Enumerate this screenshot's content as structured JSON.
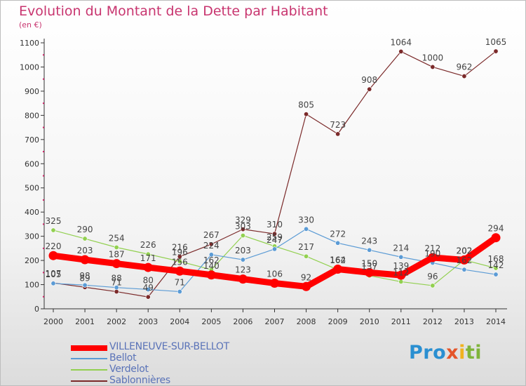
{
  "header": {
    "title": "Evolution du Montant de la Dette par Habitant",
    "subtitle": "(en €)"
  },
  "logo": {
    "part1": "Pro",
    "part2": "x",
    "part3": "i",
    "part4": "ti"
  },
  "chart_data": {
    "type": "line",
    "title": "Evolution du Montant de la Dette par Habitant",
    "ylabel": "(en €)",
    "xlabel": "",
    "x": [
      "2000",
      "2001",
      "2002",
      "2003",
      "2004",
      "2005",
      "2006",
      "2007",
      "2008",
      "2009",
      "2010",
      "2011",
      "2012",
      "2013",
      "2014"
    ],
    "ylim": [
      0,
      1100
    ],
    "yticks": [
      0,
      100,
      200,
      300,
      400,
      500,
      600,
      700,
      800,
      900,
      1000,
      1100
    ],
    "grid": false,
    "legend_position": "bottom-left",
    "series": [
      {
        "name": "VILLENEUVE-SUR-BELLOT",
        "color": "#ff0000",
        "values": [
          220,
          203,
          187,
          171,
          156,
          140,
          123,
          106,
          92,
          164,
          150,
          139,
          212,
          202,
          294
        ],
        "labels": [
          "220",
          "203",
          "187",
          "171",
          "156",
          "140",
          "123",
          "106",
          "92",
          "164",
          "150",
          "139",
          "212",
          "202",
          "294"
        ]
      },
      {
        "name": "Bellot",
        "color": "#5b9bd5",
        "values": [
          105,
          98,
          88,
          80,
          71,
          224,
          203,
          247,
          330,
          272,
          243,
          214,
          190,
          162,
          142
        ],
        "labels": [
          "105",
          "98",
          "88",
          "80",
          "71",
          "224",
          "203",
          "247",
          "330",
          "272",
          "243",
          "214",
          "190",
          "162",
          "142"
        ]
      },
      {
        "name": "Verdelot",
        "color": "#92d050",
        "values": [
          325,
          290,
          254,
          226,
          196,
          162,
          303,
          259,
          217,
          162,
          137,
          112,
          96,
          202,
          168
        ],
        "labels": [
          "325",
          "290",
          "254",
          "226",
          "196",
          "162",
          "303",
          "259",
          "217",
          "162",
          "137",
          "112",
          "96",
          "202",
          "168"
        ]
      },
      {
        "name": "Sablonnières",
        "color": "#7b2a2a",
        "values": [
          107,
          89,
          71,
          49,
          216,
          267,
          329,
          310,
          805,
          723,
          908,
          1064,
          1000,
          962,
          1065
        ],
        "labels": [
          "107",
          "89",
          "71",
          "49",
          "216",
          "267",
          "329",
          "310",
          "805",
          "723",
          "908",
          "1064",
          "1000",
          "962",
          "1065"
        ]
      }
    ]
  }
}
